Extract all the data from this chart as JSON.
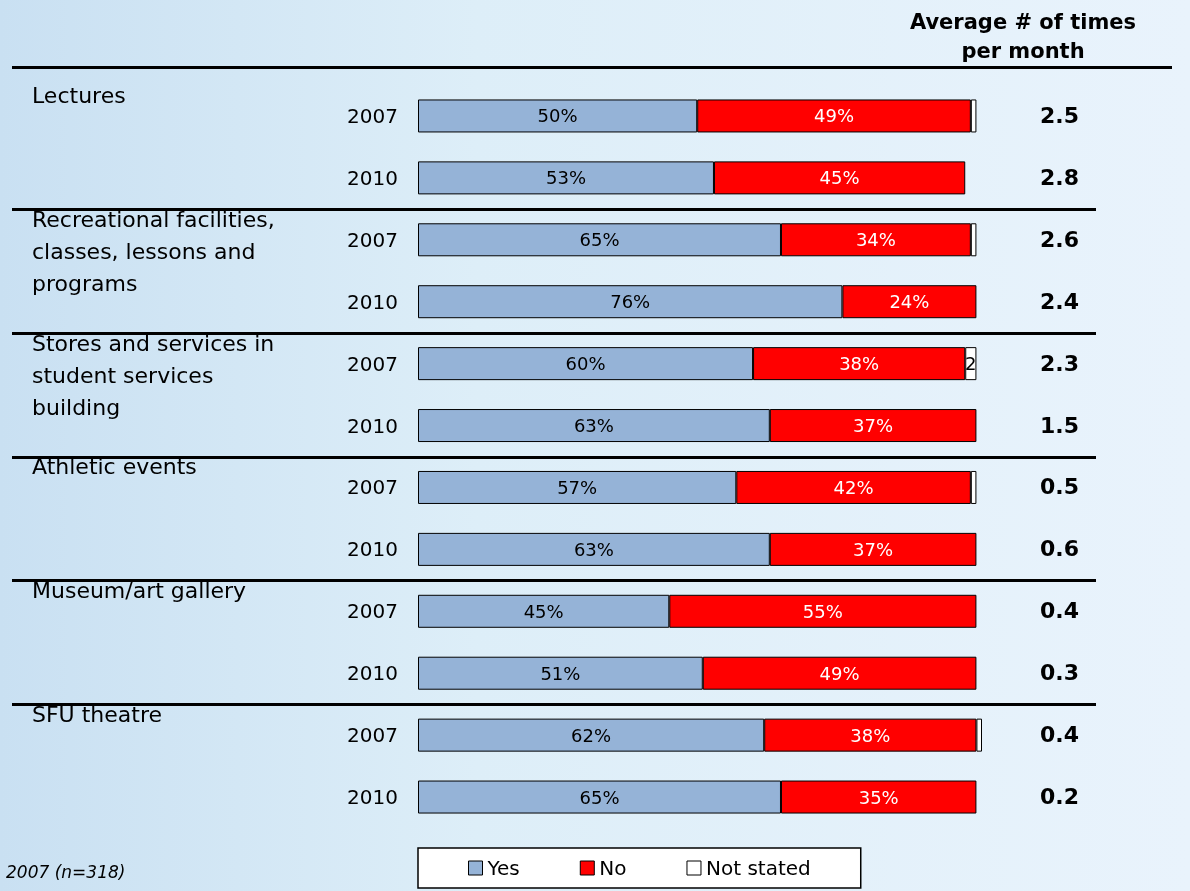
{
  "chart_data": {
    "type": "bar",
    "orientation": "horizontal",
    "stacked": true,
    "tick_labels": "y",
    "xlim": [
      0,
      101
    ],
    "legend": "bottom",
    "categories": [
      "2007",
      "2010",
      "2007",
      "2010",
      "2007",
      "2010",
      "2007",
      "2010",
      "2007",
      "2010",
      "2007",
      "2010"
    ],
    "series": [
      {
        "name": "Yes",
        "color": "#95b3d7",
        "values": [
          50,
          53,
          65,
          76,
          60,
          63,
          57,
          63,
          45,
          51,
          62,
          65
        ],
        "value_labels": [
          "50%",
          "53%",
          "65%",
          "76%",
          "60%",
          "63%",
          "57%",
          "63%",
          "45%",
          "51%",
          "62%",
          "65%"
        ]
      },
      {
        "name": "No",
        "color": "#ff0000",
        "values": [
          49,
          45,
          34,
          24,
          38,
          37,
          42,
          37,
          55,
          49,
          38,
          35
        ],
        "value_labels": [
          "49%",
          "45%",
          "34%",
          "24%",
          "38%",
          "37%",
          "42%",
          "37%",
          "55%",
          "49%",
          "38%",
          "35%"
        ]
      },
      {
        "name": "Not stated",
        "color": "#ffffff",
        "values": [
          1,
          null,
          1,
          null,
          2,
          null,
          1,
          null,
          null,
          null,
          1,
          null
        ],
        "value_labels": [
          null,
          null,
          null,
          null,
          "2",
          null,
          null,
          null,
          null,
          null,
          null,
          null
        ]
      }
    ],
    "annotations": [
      "Average # of times per month",
      "Lectures",
      "Recreational facilities, classes, lessons and programs",
      "Stores and services in student services building",
      "Athletic events",
      "Museum/art gallery",
      "SFU theatre",
      "2.5",
      "2.8",
      "2.6",
      "2.4",
      "2.3",
      "1.5",
      "0.5",
      "0.6",
      "0.4",
      "0.3",
      "0.4",
      "0.2",
      "2007 (n=318)"
    ]
  }
}
